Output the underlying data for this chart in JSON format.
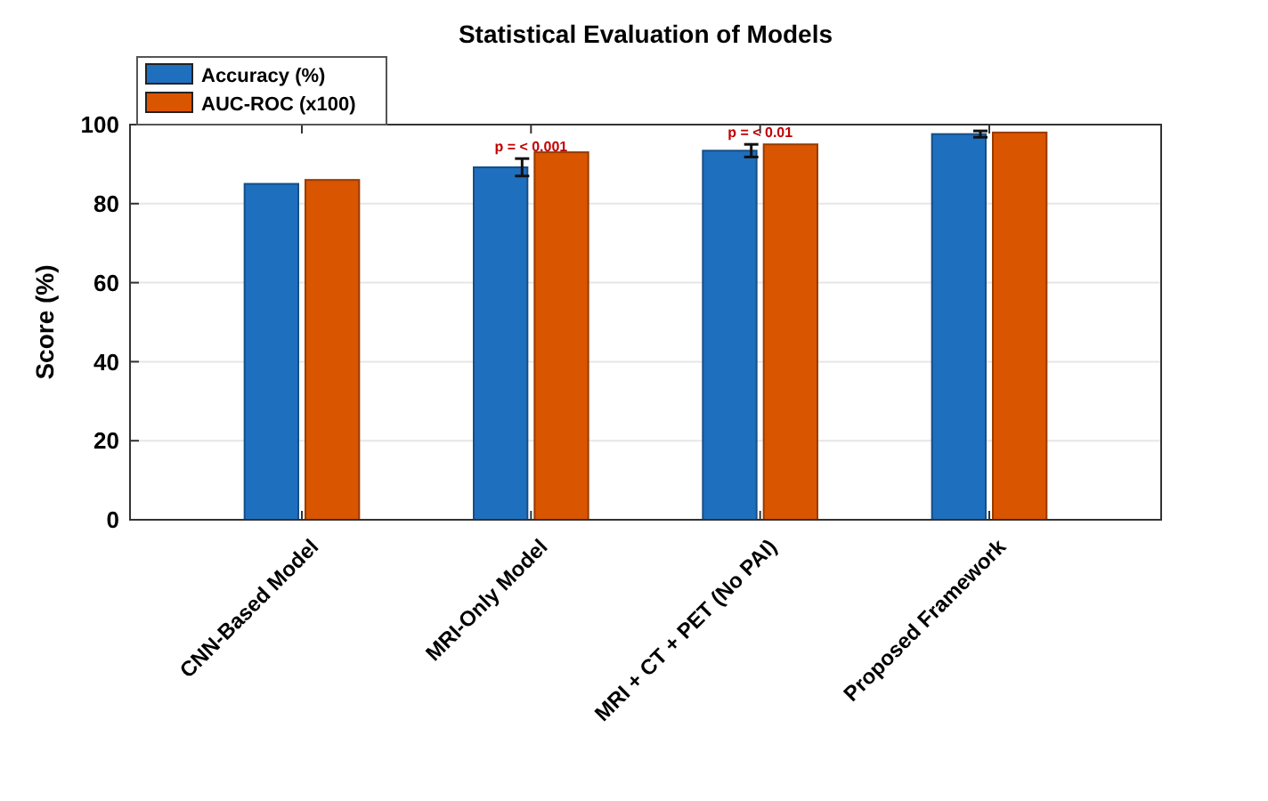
{
  "chart_data": {
    "type": "bar",
    "title": "Statistical Evaluation of Models",
    "ylabel": "Score (%)",
    "categories": [
      "CNN-Based Model",
      "MRI-Only Model",
      "MRI + CT + PET (No PAI)",
      "Proposed Framework"
    ],
    "series": [
      {
        "name": "Accuracy (%)",
        "color": "#1f6fbf",
        "values": [
          85,
          89.2,
          93.4,
          97.6
        ],
        "errors": [
          null,
          2.2,
          1.6,
          0.8
        ]
      },
      {
        "name": "AUC-ROC (x100)",
        "color": "#d95500",
        "values": [
          86,
          93,
          95,
          98
        ]
      }
    ],
    "annotations": [
      "p = < 0.001",
      "p = < 0.01"
    ],
    "ylim": [
      0,
      100
    ],
    "yticks": [
      0,
      20,
      40,
      60,
      80,
      100
    ],
    "grid": "y",
    "legend": "top left"
  }
}
